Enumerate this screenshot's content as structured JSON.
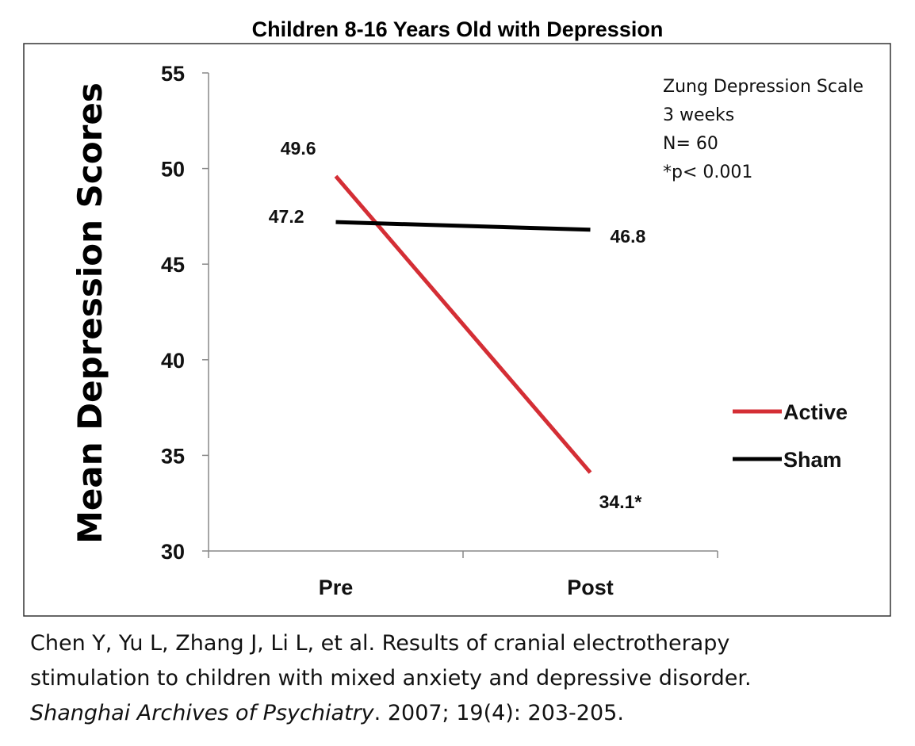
{
  "chart_data": {
    "type": "line",
    "title": "Children 8-16 Years Old with Depression",
    "ylabel": "Mean Depression Scores",
    "xlabel": "",
    "categories": [
      "Pre",
      "Post"
    ],
    "ylim": [
      30,
      55
    ],
    "yticks": [
      "30",
      "35",
      "40",
      "45",
      "50",
      "55"
    ],
    "grid": false,
    "legend_position": "right",
    "series": [
      {
        "name": "Active",
        "values": [
          49.6,
          34.1
        ],
        "labels": [
          "49.6",
          "34.1*"
        ],
        "color": "#d42e35"
      },
      {
        "name": "Sham",
        "values": [
          47.2,
          46.8
        ],
        "labels": [
          "47.2",
          "46.8"
        ],
        "color": "#000000"
      }
    ],
    "annotations": [
      "Zung Depression Scale",
      "3 weeks",
      "N= 60",
      "*p< 0.001"
    ]
  },
  "citation": {
    "line1": "Chen Y, Yu L, Zhang J, Li L, et al. Results of cranial electrotherapy",
    "line2": "stimulation to children with mixed anxiety and depressive disorder.",
    "journal": "Shanghai Archives of Psychiatry",
    "details": ". 2007; 19(4): 203-205."
  }
}
